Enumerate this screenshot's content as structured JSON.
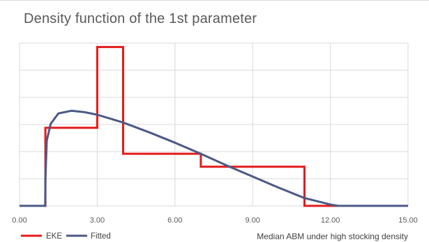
{
  "chart_data": {
    "type": "line",
    "title": "Density function of the 1st parameter",
    "xlabel": "Median ABM under high stocking density",
    "ylabel": "",
    "xlim": [
      0,
      15
    ],
    "ylim": [
      0,
      0.25
    ],
    "x_ticks": [
      "0.00",
      "3.00",
      "6.00",
      "9.00",
      "12.00",
      "15.00"
    ],
    "grid": true,
    "legend_position": "bottom-left",
    "series": [
      {
        "name": "EKE",
        "color": "#e31b1b",
        "style": "step",
        "points": [
          [
            0,
            0
          ],
          [
            1,
            0
          ],
          [
            1,
            0.12
          ],
          [
            3,
            0.12
          ],
          [
            3,
            0.244
          ],
          [
            4,
            0.244
          ],
          [
            4,
            0.08
          ],
          [
            7,
            0.08
          ],
          [
            7,
            0.06
          ],
          [
            11,
            0.06
          ],
          [
            11,
            0
          ],
          [
            15,
            0
          ]
        ]
      },
      {
        "name": "Fitted",
        "color": "#4b5985",
        "style": "smooth",
        "points": [
          [
            0,
            0
          ],
          [
            0.99,
            0
          ],
          [
            1.0,
            0.04
          ],
          [
            1.05,
            0.1
          ],
          [
            1.2,
            0.126
          ],
          [
            1.5,
            0.142
          ],
          [
            2.0,
            0.146
          ],
          [
            2.5,
            0.144
          ],
          [
            3.0,
            0.14
          ],
          [
            3.5,
            0.134
          ],
          [
            4.0,
            0.128
          ],
          [
            5.0,
            0.113
          ],
          [
            6.0,
            0.097
          ],
          [
            7.0,
            0.08
          ],
          [
            8.0,
            0.062
          ],
          [
            9.0,
            0.045
          ],
          [
            10.0,
            0.028
          ],
          [
            11.0,
            0.012
          ],
          [
            12.0,
            0.002
          ],
          [
            12.3,
            0
          ],
          [
            15,
            0
          ]
        ]
      }
    ]
  }
}
